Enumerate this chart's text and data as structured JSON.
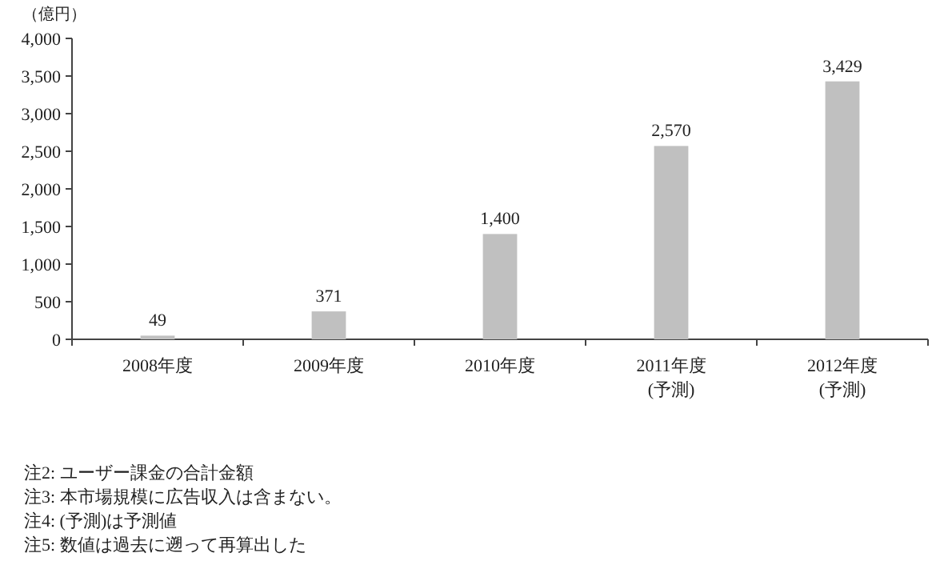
{
  "chart_data": {
    "type": "bar",
    "ylabel": "（億円）",
    "categories": [
      "2008年度",
      "2009年度",
      "2010年度",
      "2011年度\n(予測)",
      "2012年度\n(予測)"
    ],
    "values": [
      49,
      371,
      1400,
      2570,
      3429
    ],
    "value_labels": [
      "49",
      "371",
      "1,400",
      "2,570",
      "3,429"
    ],
    "color": "#c0c0c0",
    "ylim": [
      0,
      4000
    ],
    "yticks": [
      0,
      500,
      {
        "value": 1000,
        "label": "1,000"
      },
      {
        "value": 1500,
        "label": "1,500"
      },
      {
        "value": 2000,
        "label": "2,000"
      },
      {
        "value": 2500,
        "label": "2,500"
      },
      {
        "value": 3000,
        "label": "3,000"
      },
      {
        "value": 3500,
        "label": "3,500"
      },
      {
        "value": 4000,
        "label": "4,000"
      }
    ],
    "grid": false,
    "annotations": [
      "注2: ユーザー課金の合計金額",
      "注3: 本市場規模に広告収入は含まない。",
      "注4: (予測)は予測値",
      "注5: 数値は過去に遡って再算出した"
    ]
  }
}
